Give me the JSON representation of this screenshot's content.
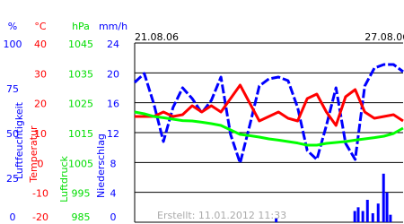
{
  "chart_data": {
    "type": "line",
    "xlim": [
      0,
      7
    ],
    "x": [
      0,
      0.25,
      0.5,
      0.75,
      1,
      1.25,
      1.5,
      1.75,
      2,
      2.25,
      2.5,
      2.75,
      3,
      3.25,
      3.5,
      3.75,
      4,
      4.25,
      4.5,
      4.75,
      5,
      5.25,
      5.5,
      5.75,
      6,
      6.25,
      6.5,
      6.75,
      7
    ],
    "annotations": [
      {
        "text": "21.08.06",
        "x": 0
      },
      {
        "text": "27.08.06",
        "x": 6
      }
    ],
    "footer": "Erstellt: 11.01.2012 11:33",
    "grid": true,
    "axes": [
      {
        "unit": "%",
        "label": "Luftfeuchtigkeit",
        "color": "#0000ff",
        "lim": [
          0,
          100
        ],
        "ticks": [
          0,
          25,
          50,
          75,
          100
        ]
      },
      {
        "unit": "°C",
        "label": "Temperatur",
        "color": "#ff0000",
        "lim": [
          -20,
          40
        ],
        "ticks": [
          -20,
          -10,
          0,
          10,
          20,
          30,
          40
        ]
      },
      {
        "unit": "hPa",
        "label": "Luftdruck",
        "color": "#00dd00",
        "lim": [
          985,
          1045
        ],
        "ticks": [
          985,
          995,
          1005,
          1015,
          1025,
          1035,
          1045
        ]
      },
      {
        "unit": "mm/h",
        "label": "Niederschlag",
        "color": "#0000ff",
        "lim": [
          0,
          24
        ],
        "ticks": [
          0,
          4,
          8,
          12,
          16,
          20,
          24
        ]
      }
    ],
    "series": [
      {
        "axis": 0,
        "color": "#0000ff",
        "style": "dashed",
        "values": [
          78,
          83,
          66,
          45,
          64,
          75,
          69,
          61,
          68,
          81,
          49,
          33,
          54,
          76,
          80,
          81,
          79,
          64,
          40,
          35,
          54,
          75,
          44,
          35,
          76,
          86,
          88,
          88,
          84
        ]
      },
      {
        "axis": 1,
        "color": "#ff0000",
        "style": "solid",
        "values": [
          15.4,
          15.4,
          15.4,
          16.9,
          15.4,
          16,
          19,
          16.9,
          19,
          16.9,
          21.4,
          25.9,
          19.9,
          13.9,
          15.4,
          16.9,
          14.8,
          13.9,
          21.4,
          22.9,
          16.9,
          12.4,
          22,
          24.4,
          16.9,
          14.8,
          15.4,
          16,
          13.9
        ]
      },
      {
        "axis": 2,
        "color": "#00ff00",
        "style": "solid",
        "values": [
          1021.9,
          1021.3,
          1020.4,
          1020,
          1019.5,
          1019,
          1018.9,
          1018.5,
          1018,
          1017.4,
          1015.9,
          1014.4,
          1014,
          1013.5,
          1012.9,
          1012.5,
          1012,
          1011.5,
          1010.8,
          1010.8,
          1011.4,
          1011.7,
          1012,
          1012.5,
          1012.9,
          1013.3,
          1013.8,
          1014.7,
          1016.5
        ]
      },
      {
        "axis": 3,
        "color": "#0000ff",
        "style": "bars",
        "x": [
          3.69,
          5.74,
          5.83,
          5.95,
          6.07,
          6.21,
          6.35,
          6.49,
          6.58,
          6.67
        ],
        "values": [
          0.5,
          1.5,
          2,
          1.5,
          3,
          1.2,
          2.5,
          6.5,
          4,
          1
        ]
      }
    ]
  }
}
